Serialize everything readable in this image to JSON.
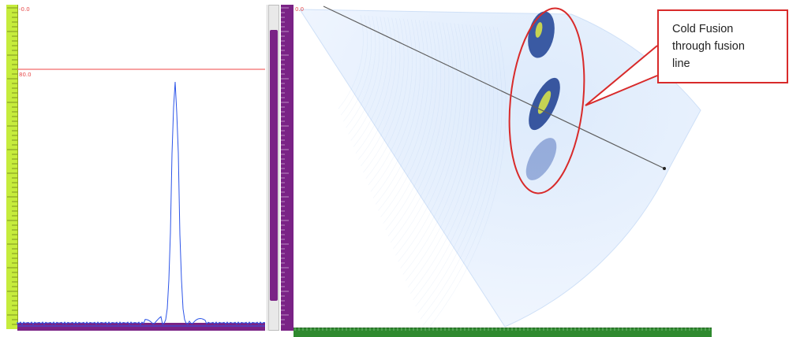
{
  "left_panel": {
    "top_value": "-0.0",
    "gate_value": "80.0"
  },
  "right_panel": {
    "top_value": "0.0"
  },
  "callout": {
    "line1": "Cold Fusion",
    "line2": "through fusion",
    "line3": "line"
  },
  "colors": {
    "ruler_green": "#c6ec3c",
    "ruler_purple": "#7a2386",
    "ruler_dark_green": "#2f8a2f",
    "annotation_red": "#d82a2a",
    "waveform_blue": "#2c54e8"
  }
}
